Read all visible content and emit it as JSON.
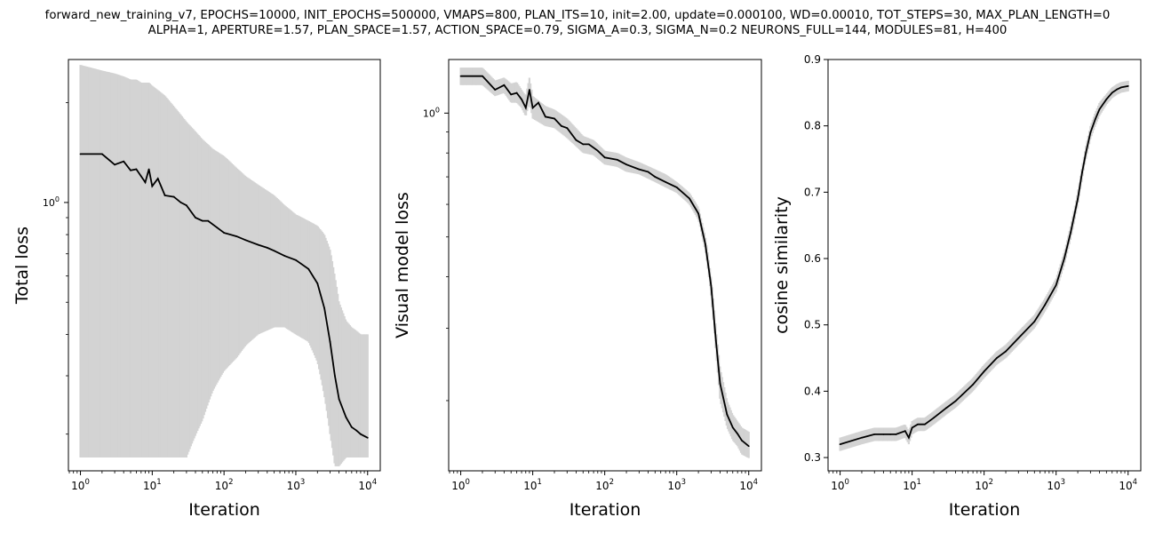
{
  "figure": {
    "title_lines": [
      "forward_new_training_v7, EPOCHS=10000, INIT_EPOCHS=500000, VMAPS=800, PLAN_ITS=10, init=2.00, update=0.000100, WD=0.00010, TOT_STEPS=30, MAX_PLAN_LENGTH=0",
      "ALPHA=1, APERTURE=1.57, PLAN_SPACE=1.57, ACTION_SPACE=0.79, SIGMA_A=0.3, SIGMA_N=0.2 NEURONS_FULL=144, MODULES=81, H=400"
    ]
  },
  "colors": {
    "mean_line": "#000000",
    "error_band": "#d3d3d3"
  },
  "chart_data": [
    {
      "type": "line",
      "id": "total-loss",
      "xlabel": "Iteration",
      "ylabel": "Total loss",
      "xscale": "log",
      "yscale": "log",
      "xlim": [
        0.68,
        15000
      ],
      "ylim": [
        0.155,
        2.7
      ],
      "xticks": [
        {
          "value": 1,
          "base": "10",
          "exp": "0"
        },
        {
          "value": 10,
          "base": "10",
          "exp": "1"
        },
        {
          "value": 100,
          "base": "10",
          "exp": "2"
        },
        {
          "value": 1000,
          "base": "10",
          "exp": "3"
        },
        {
          "value": 10000,
          "base": "10",
          "exp": "4"
        }
      ],
      "yticks": [
        {
          "value": 1,
          "base": "10",
          "exp": "0"
        }
      ],
      "grid": false,
      "series": [
        {
          "role": "mean",
          "x": [
            1,
            2,
            3,
            4,
            5,
            6,
            7,
            8,
            9,
            10,
            12,
            15,
            20,
            25,
            30,
            40,
            50,
            60,
            80,
            100,
            150,
            200,
            300,
            400,
            500,
            700,
            1000,
            1500,
            2000,
            2500,
            3000,
            3500,
            4000,
            5000,
            6000,
            7000,
            8000,
            10000
          ],
          "y": [
            1.4,
            1.4,
            1.3,
            1.33,
            1.25,
            1.26,
            1.2,
            1.15,
            1.26,
            1.12,
            1.18,
            1.05,
            1.04,
            1.0,
            0.98,
            0.9,
            0.88,
            0.88,
            0.84,
            0.81,
            0.79,
            0.77,
            0.745,
            0.73,
            0.715,
            0.69,
            0.67,
            0.63,
            0.57,
            0.48,
            0.38,
            0.3,
            0.255,
            0.225,
            0.21,
            0.205,
            0.2,
            0.195
          ]
        },
        {
          "role": "error-band",
          "x": [
            1,
            2,
            3,
            4,
            5,
            6,
            7,
            8,
            9,
            10,
            15,
            20,
            30,
            50,
            70,
            100,
            150,
            200,
            300,
            500,
            700,
            1000,
            1500,
            2000,
            2500,
            3000,
            3500,
            4000,
            5000,
            6000,
            7000,
            8000,
            10000
          ],
          "low": [
            0.17,
            0.17,
            0.17,
            0.17,
            0.17,
            0.17,
            0.17,
            0.17,
            0.17,
            0.17,
            0.17,
            0.17,
            0.17,
            0.22,
            0.27,
            0.31,
            0.34,
            0.37,
            0.4,
            0.42,
            0.42,
            0.4,
            0.38,
            0.33,
            0.26,
            0.2,
            0.16,
            0.16,
            0.17,
            0.17,
            0.17,
            0.17,
            0.17
          ],
          "high": [
            2.6,
            2.5,
            2.45,
            2.4,
            2.35,
            2.35,
            2.3,
            2.3,
            2.3,
            2.25,
            2.1,
            1.95,
            1.75,
            1.55,
            1.45,
            1.38,
            1.27,
            1.2,
            1.13,
            1.05,
            0.98,
            0.92,
            0.88,
            0.85,
            0.8,
            0.72,
            0.6,
            0.5,
            0.44,
            0.42,
            0.41,
            0.4,
            0.4
          ]
        }
      ]
    },
    {
      "type": "line",
      "id": "visual-model-loss",
      "xlabel": "Iteration",
      "ylabel": "Visual model loss",
      "xscale": "log",
      "yscale": "log",
      "xlim": [
        0.68,
        15000
      ],
      "ylim": [
        0.135,
        1.35
      ],
      "xticks": [
        {
          "value": 1,
          "base": "10",
          "exp": "0"
        },
        {
          "value": 10,
          "base": "10",
          "exp": "1"
        },
        {
          "value": 100,
          "base": "10",
          "exp": "2"
        },
        {
          "value": 1000,
          "base": "10",
          "exp": "3"
        },
        {
          "value": 10000,
          "base": "10",
          "exp": "4"
        }
      ],
      "yticks": [
        {
          "value": 1,
          "base": "10",
          "exp": "0"
        }
      ],
      "grid": false,
      "series": [
        {
          "role": "mean",
          "x": [
            1,
            2,
            3,
            4,
            5,
            6,
            7,
            8,
            9,
            10,
            12,
            15,
            20,
            25,
            30,
            40,
            50,
            60,
            80,
            100,
            150,
            200,
            300,
            400,
            500,
            700,
            1000,
            1500,
            2000,
            2500,
            3000,
            3500,
            4000,
            5000,
            6000,
            7000,
            8000,
            10000
          ],
          "y": [
            1.23,
            1.23,
            1.14,
            1.17,
            1.11,
            1.12,
            1.08,
            1.03,
            1.14,
            1.03,
            1.06,
            0.98,
            0.97,
            0.93,
            0.92,
            0.86,
            0.84,
            0.84,
            0.81,
            0.78,
            0.77,
            0.75,
            0.73,
            0.72,
            0.7,
            0.68,
            0.66,
            0.62,
            0.57,
            0.48,
            0.38,
            0.28,
            0.22,
            0.185,
            0.172,
            0.166,
            0.16,
            0.155
          ]
        },
        {
          "role": "error-band",
          "x": [
            1,
            2,
            3,
            4,
            5,
            6,
            7,
            8,
            9,
            10,
            15,
            20,
            30,
            50,
            70,
            100,
            150,
            200,
            300,
            500,
            700,
            1000,
            1500,
            2000,
            2500,
            3000,
            3500,
            4000,
            5000,
            6000,
            7000,
            8000,
            10000
          ],
          "low": [
            1.17,
            1.17,
            1.1,
            1.12,
            1.06,
            1.06,
            1.03,
            0.98,
            1.06,
            0.97,
            0.93,
            0.92,
            0.87,
            0.8,
            0.79,
            0.75,
            0.74,
            0.72,
            0.71,
            0.68,
            0.66,
            0.64,
            0.6,
            0.55,
            0.46,
            0.36,
            0.26,
            0.2,
            0.172,
            0.16,
            0.155,
            0.148,
            0.145
          ],
          "high": [
            1.29,
            1.29,
            1.2,
            1.22,
            1.18,
            1.19,
            1.14,
            1.1,
            1.22,
            1.1,
            1.04,
            1.02,
            0.97,
            0.88,
            0.86,
            0.81,
            0.8,
            0.78,
            0.76,
            0.73,
            0.71,
            0.68,
            0.64,
            0.59,
            0.5,
            0.4,
            0.3,
            0.24,
            0.2,
            0.185,
            0.178,
            0.172,
            0.168
          ]
        }
      ]
    },
    {
      "type": "line",
      "id": "cosine-similarity",
      "xlabel": "Iteration",
      "ylabel": "cosine similarity",
      "xscale": "log",
      "yscale": "linear",
      "xlim": [
        0.68,
        15000
      ],
      "ylim": [
        0.28,
        0.9
      ],
      "xticks": [
        {
          "value": 1,
          "base": "10",
          "exp": "0"
        },
        {
          "value": 10,
          "base": "10",
          "exp": "1"
        },
        {
          "value": 100,
          "base": "10",
          "exp": "2"
        },
        {
          "value": 1000,
          "base": "10",
          "exp": "3"
        },
        {
          "value": 10000,
          "base": "10",
          "exp": "4"
        }
      ],
      "yticks": [
        {
          "value": 0.3,
          "label": "0.3"
        },
        {
          "value": 0.4,
          "label": "0.4"
        },
        {
          "value": 0.5,
          "label": "0.5"
        },
        {
          "value": 0.6,
          "label": "0.6"
        },
        {
          "value": 0.7,
          "label": "0.7"
        },
        {
          "value": 0.8,
          "label": "0.8"
        },
        {
          "value": 0.9,
          "label": "0.9"
        }
      ],
      "grid": false,
      "series": [
        {
          "role": "mean",
          "x": [
            1,
            2,
            3,
            4,
            5,
            6,
            8,
            9,
            10,
            12,
            15,
            20,
            30,
            40,
            50,
            70,
            100,
            150,
            200,
            300,
            500,
            700,
            1000,
            1300,
            1600,
            2000,
            2300,
            2600,
            3000,
            3500,
            4000,
            5000,
            6000,
            7000,
            8000,
            10000
          ],
          "y": [
            0.32,
            0.33,
            0.335,
            0.335,
            0.335,
            0.335,
            0.34,
            0.33,
            0.345,
            0.35,
            0.35,
            0.36,
            0.375,
            0.385,
            0.395,
            0.41,
            0.43,
            0.45,
            0.46,
            0.48,
            0.505,
            0.53,
            0.56,
            0.6,
            0.64,
            0.69,
            0.73,
            0.76,
            0.79,
            0.81,
            0.825,
            0.84,
            0.85,
            0.855,
            0.858,
            0.86
          ]
        },
        {
          "role": "error-band",
          "x": [
            1,
            2,
            3,
            4,
            5,
            6,
            8,
            9,
            10,
            12,
            15,
            20,
            30,
            40,
            50,
            70,
            100,
            150,
            200,
            300,
            500,
            700,
            1000,
            1300,
            1600,
            2000,
            2300,
            2600,
            3000,
            3500,
            4000,
            5000,
            6000,
            7000,
            8000,
            10000
          ],
          "low": [
            0.31,
            0.32,
            0.325,
            0.325,
            0.325,
            0.325,
            0.33,
            0.32,
            0.335,
            0.34,
            0.34,
            0.35,
            0.365,
            0.375,
            0.385,
            0.4,
            0.42,
            0.44,
            0.45,
            0.47,
            0.495,
            0.52,
            0.55,
            0.59,
            0.63,
            0.68,
            0.72,
            0.75,
            0.78,
            0.8,
            0.815,
            0.832,
            0.842,
            0.847,
            0.85,
            0.852
          ],
          "high": [
            0.33,
            0.34,
            0.345,
            0.345,
            0.345,
            0.345,
            0.35,
            0.34,
            0.355,
            0.36,
            0.36,
            0.37,
            0.385,
            0.395,
            0.405,
            0.42,
            0.44,
            0.46,
            0.47,
            0.49,
            0.515,
            0.54,
            0.57,
            0.61,
            0.65,
            0.7,
            0.74,
            0.77,
            0.8,
            0.82,
            0.835,
            0.848,
            0.858,
            0.863,
            0.866,
            0.868
          ]
        }
      ]
    }
  ]
}
